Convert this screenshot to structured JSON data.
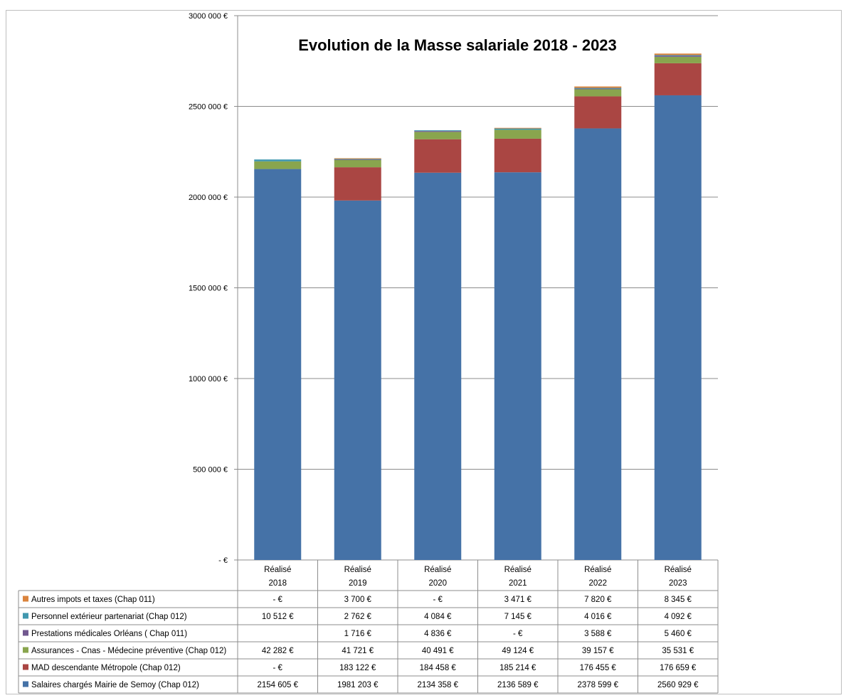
{
  "chart_data": {
    "type": "bar",
    "stacked": true,
    "title": "Evolution de la Masse salariale 2018 - 2023",
    "ylim": [
      0,
      3000000
    ],
    "y_ticks": [
      {
        "value": 0,
        "label": "-  €"
      },
      {
        "value": 500000,
        "label": "500 000 €"
      },
      {
        "value": 1000000,
        "label": "1000 000 €"
      },
      {
        "value": 1500000,
        "label": "1500 000 €"
      },
      {
        "value": 2000000,
        "label": "2000 000 €"
      },
      {
        "value": 2500000,
        "label": "2500 000 €"
      },
      {
        "value": 3000000,
        "label": "3000 000 €"
      }
    ],
    "grid": true,
    "legend": "data-table-left",
    "categories": [
      [
        "Réalisé",
        "2018"
      ],
      [
        "Réalisé",
        "2019"
      ],
      [
        "Réalisé",
        "2020"
      ],
      [
        "Réalisé",
        "2021"
      ],
      [
        "Réalisé",
        "2022"
      ],
      [
        "Réalisé",
        "2023"
      ]
    ],
    "series": [
      {
        "name": "Salaires chargés Mairie de Semoy (Chap 012)",
        "color": "#4572a7",
        "values": [
          2154605,
          1981203,
          2134358,
          2136589,
          2378599,
          2560929
        ],
        "labels": [
          "2154 605 €",
          "1981 203 €",
          "2134 358 €",
          "2136 589 €",
          "2378 599 €",
          "2560 929 €"
        ]
      },
      {
        "name": "MAD  descendante Métropole (Chap 012)",
        "color": "#aa4643",
        "values": [
          0,
          183122,
          184458,
          185214,
          176455,
          176659
        ],
        "labels": [
          "-  €",
          "183 122 €",
          "184 458 €",
          "185 214 €",
          "176 455 €",
          "176 659 €"
        ]
      },
      {
        "name": "Assurances - Cnas - Médecine préventive (Chap 012)",
        "color": "#89a54e",
        "values": [
          42282,
          41721,
          40491,
          49124,
          39157,
          35531
        ],
        "labels": [
          "42 282 €",
          "41 721 €",
          "40 491 €",
          "49 124 €",
          "39 157 €",
          "35 531 €"
        ]
      },
      {
        "name": "Prestations médicales Orléans ( Chap 011)",
        "color": "#71588f",
        "values": [
          0,
          1716,
          4836,
          0,
          3588,
          5460
        ],
        "labels": [
          "",
          "1 716 €",
          "4 836 €",
          "-  €",
          "3 588 €",
          "5 460 €"
        ]
      },
      {
        "name": "Personnel extérieur partenariat (Chap 012)",
        "color": "#4198af",
        "values": [
          10512,
          2762,
          4084,
          7145,
          4016,
          4092
        ],
        "labels": [
          "10 512 €",
          "2 762 €",
          "4 084 €",
          "7 145 €",
          "4 016 €",
          "4 092 €"
        ]
      },
      {
        "name": "Autres impots et taxes (Chap 011)",
        "color": "#db843d",
        "values": [
          0,
          3700,
          0,
          3471,
          7820,
          8345
        ],
        "labels": [
          "-  €",
          "3 700 €",
          "-  €",
          "3 471 €",
          "7 820 €",
          "8 345 €"
        ]
      }
    ]
  }
}
